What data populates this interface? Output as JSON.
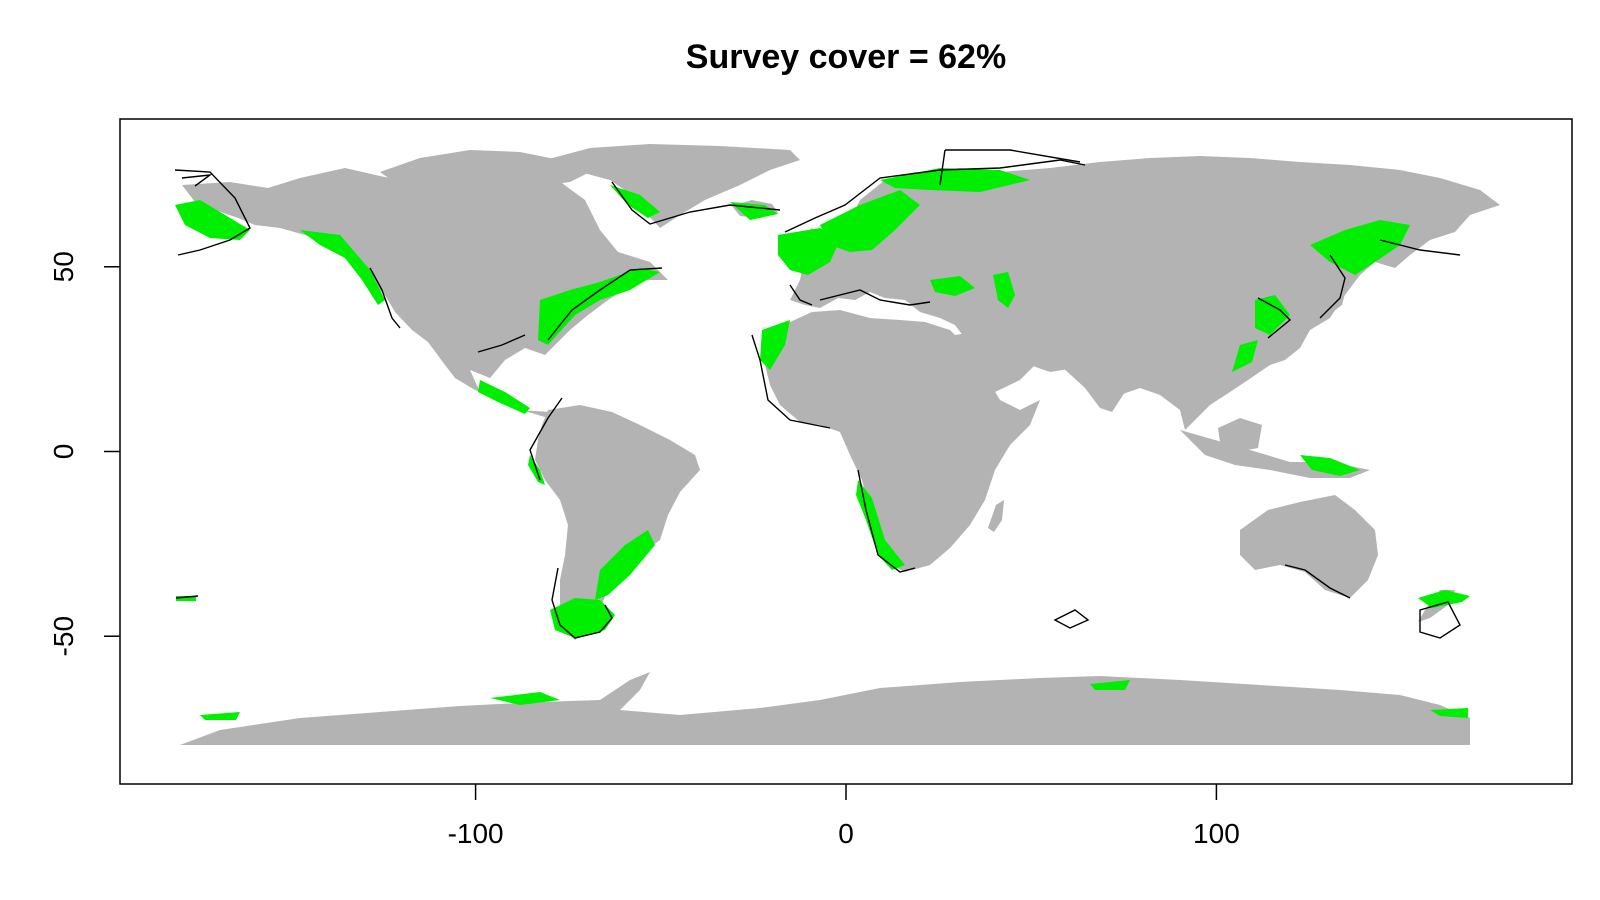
{
  "title": "Survey cover = 62%",
  "colors": {
    "land": "#b3b3b3",
    "survey": "#00ee00",
    "outline": "#000000",
    "background": "#ffffff"
  },
  "axes": {
    "x": {
      "ticks": [
        -100,
        0,
        100
      ],
      "labels": [
        "-100",
        "0",
        "100"
      ],
      "range": [
        -196,
        196
      ]
    },
    "y": {
      "ticks": [
        -50,
        0,
        50
      ],
      "labels": [
        "-50",
        "0",
        "50"
      ],
      "range": [
        -90,
        90
      ]
    }
  }
}
